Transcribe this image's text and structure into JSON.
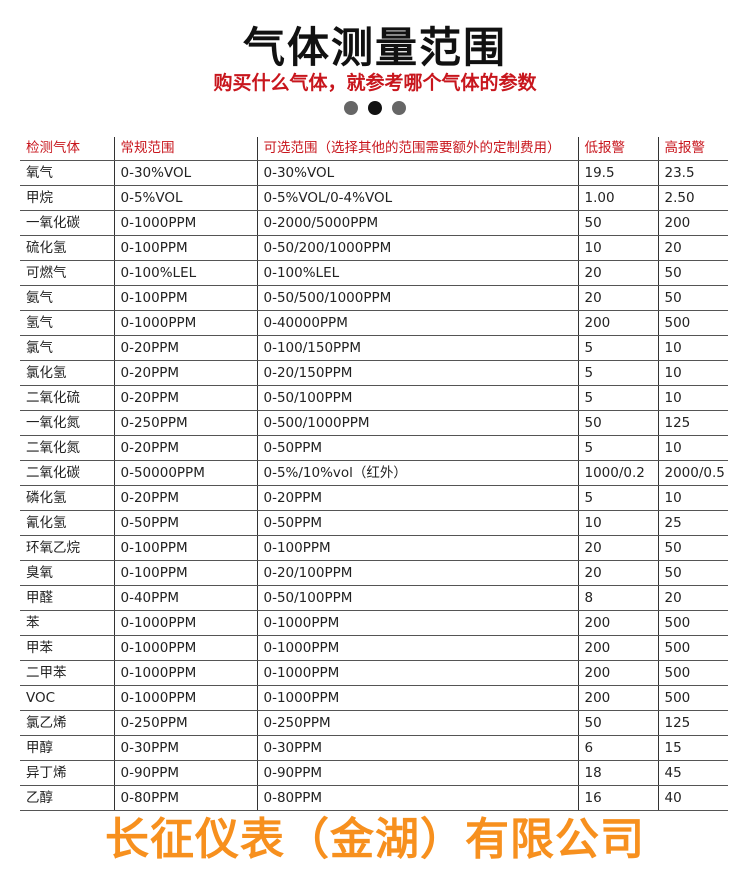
{
  "title": "气体测量范围",
  "subtitle": "购买什么气体，就参考哪个气体的参数",
  "carousel": {
    "count": 3,
    "active": 1
  },
  "watermark": "长征仪表（金湖）有限公司",
  "table": {
    "headers": [
      "检测气体",
      "常规范围",
      "可选范围（选择其他的范围需要额外的定制费用）",
      "低报警",
      "高报警"
    ],
    "rows": [
      [
        "氧气",
        "0-30%VOL",
        "0-30%VOL",
        "19.5",
        "23.5"
      ],
      [
        "甲烷",
        "0-5%VOL",
        "0-5%VOL/0-4%VOL",
        "1.00",
        "2.50"
      ],
      [
        "一氧化碳",
        "0-1000PPM",
        "0-2000/5000PPM",
        "50",
        "200"
      ],
      [
        "硫化氢",
        "0-100PPM",
        "0-50/200/1000PPM",
        "10",
        "20"
      ],
      [
        "可燃气",
        "0-100%LEL",
        "0-100%LEL",
        "20",
        "50"
      ],
      [
        "氨气",
        "0-100PPM",
        "0-50/500/1000PPM",
        "20",
        "50"
      ],
      [
        "氢气",
        "0-1000PPM",
        "0-40000PPM",
        "200",
        "500"
      ],
      [
        "氯气",
        "0-20PPM",
        "0-100/150PPM",
        "5",
        "10"
      ],
      [
        "氯化氢",
        "0-20PPM",
        "0-20/150PPM",
        "5",
        "10"
      ],
      [
        "二氧化硫",
        "0-20PPM",
        "0-50/100PPM",
        "5",
        "10"
      ],
      [
        "一氧化氮",
        "0-250PPM",
        "0-500/1000PPM",
        "50",
        "125"
      ],
      [
        "二氧化氮",
        "0-20PPM",
        "0-50PPM",
        "5",
        "10"
      ],
      [
        "二氧化碳",
        "0-50000PPM",
        "0-5%/10%vol（红外）",
        "1000/0.2",
        "2000/0.5"
      ],
      [
        "磷化氢",
        "0-20PPM",
        "0-20PPM",
        "5",
        "10"
      ],
      [
        "氰化氢",
        "0-50PPM",
        "0-50PPM",
        "10",
        "25"
      ],
      [
        "环氧乙烷",
        "0-100PPM",
        "0-100PPM",
        "20",
        "50"
      ],
      [
        "臭氧",
        "0-100PPM",
        "0-20/100PPM",
        "20",
        "50"
      ],
      [
        "甲醛",
        "0-40PPM",
        "0-50/100PPM",
        "8",
        "20"
      ],
      [
        "苯",
        "0-1000PPM",
        "0-1000PPM",
        "200",
        "500"
      ],
      [
        "甲苯",
        "0-1000PPM",
        "0-1000PPM",
        "200",
        "500"
      ],
      [
        "二甲苯",
        "0-1000PPM",
        "0-1000PPM",
        "200",
        "500"
      ],
      [
        "VOC",
        "0-1000PPM",
        "0-1000PPM",
        "200",
        "500"
      ],
      [
        "氯乙烯",
        "0-250PPM",
        "0-250PPM",
        "50",
        "125"
      ],
      [
        "甲醇",
        "0-30PPM",
        "0-30PPM",
        "6",
        "15"
      ],
      [
        "异丁烯",
        "0-90PPM",
        "0-90PPM",
        "18",
        "45"
      ],
      [
        "乙醇",
        "0-80PPM",
        "0-80PPM",
        "16",
        "40"
      ]
    ]
  }
}
